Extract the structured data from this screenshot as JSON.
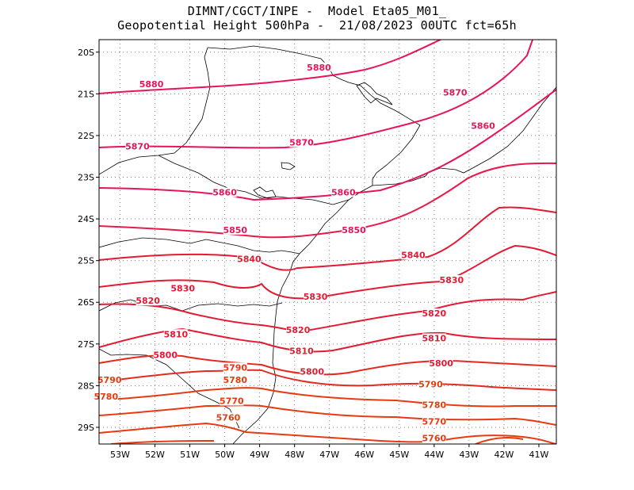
{
  "title": {
    "line1": "DIMNT/CGCT/INPE -  Model Eta05_M01_",
    "line2": "Geopotential Height 500hPa -  21/08/2023 00UTC fct=65h"
  },
  "axes": {
    "lat_ticks": [
      "20S",
      "21S",
      "22S",
      "23S",
      "24S",
      "25S",
      "26S",
      "27S",
      "28S",
      "29S"
    ],
    "lon_ticks": [
      "53W",
      "52W",
      "51W",
      "50W",
      "49W",
      "48W",
      "47W",
      "46W",
      "45W",
      "44W",
      "43W",
      "42W",
      "41W"
    ]
  },
  "chart_data": {
    "type": "map-contour",
    "field": "Geopotential Height 500hPa",
    "lat_range": [
      -29.4,
      -19.7
    ],
    "lon_range": [
      -53.6,
      -40.5
    ],
    "contour_levels": [
      5760,
      5770,
      5780,
      5790,
      5800,
      5810,
      5820,
      5830,
      5840,
      5850,
      5860,
      5870,
      5880
    ],
    "contour_labels": [
      {
        "text": "5880",
        "lon": -52.1,
        "lat": -20.8
      },
      {
        "text": "5880",
        "lon": -47.3,
        "lat": -20.4
      },
      {
        "text": "5870",
        "lon": -43.4,
        "lat": -21.0
      },
      {
        "text": "5860",
        "lon": -42.6,
        "lat": -21.8
      },
      {
        "text": "5870",
        "lon": -52.5,
        "lat": -22.3
      },
      {
        "text": "5870",
        "lon": -47.8,
        "lat": -22.2
      },
      {
        "text": "5860",
        "lon": -50.0,
        "lat": -23.4
      },
      {
        "text": "5860",
        "lon": -46.6,
        "lat": -23.4
      },
      {
        "text": "5850",
        "lon": -49.7,
        "lat": -24.3
      },
      {
        "text": "5850",
        "lon": -46.3,
        "lat": -24.3
      },
      {
        "text": "5840",
        "lon": -49.3,
        "lat": -25.0
      },
      {
        "text": "5840",
        "lon": -44.6,
        "lat": -24.9
      },
      {
        "text": "5830",
        "lon": -51.2,
        "lat": -25.7
      },
      {
        "text": "5830",
        "lon": -47.4,
        "lat": -25.9
      },
      {
        "text": "5830",
        "lon": -43.5,
        "lat": -25.5
      },
      {
        "text": "5820",
        "lon": -52.2,
        "lat": -26.0
      },
      {
        "text": "5820",
        "lon": -47.9,
        "lat": -26.7
      },
      {
        "text": "5820",
        "lon": -44.0,
        "lat": -26.3
      },
      {
        "text": "5810",
        "lon": -51.4,
        "lat": -26.8
      },
      {
        "text": "5810",
        "lon": -47.8,
        "lat": -27.2
      },
      {
        "text": "5810",
        "lon": -44.0,
        "lat": -26.9
      },
      {
        "text": "5800",
        "lon": -51.7,
        "lat": -27.3
      },
      {
        "text": "5800",
        "lon": -47.5,
        "lat": -27.7
      },
      {
        "text": "5800",
        "lon": -43.8,
        "lat": -27.5
      },
      {
        "text": "5790",
        "lon": -53.3,
        "lat": -27.9
      },
      {
        "text": "5790",
        "lon": -49.7,
        "lat": -27.6
      },
      {
        "text": "5790",
        "lon": -44.1,
        "lat": -28.0
      },
      {
        "text": "5780",
        "lon": -53.4,
        "lat": -28.3
      },
      {
        "text": "5780",
        "lon": -49.7,
        "lat": -27.9
      },
      {
        "text": "5780",
        "lon": -44.0,
        "lat": -28.5
      },
      {
        "text": "5770",
        "lon": -49.8,
        "lat": -28.4
      },
      {
        "text": "5770",
        "lon": -44.0,
        "lat": -28.9
      },
      {
        "text": "5760",
        "lon": -49.9,
        "lat": -28.8
      },
      {
        "text": "5760",
        "lon": -44.0,
        "lat": -29.3
      }
    ]
  },
  "colors": {
    "contour_high": "#e8145a",
    "contour_mid": "#e41a32",
    "contour_low": "#e83a10",
    "coast": "#000000",
    "grid": "#808080"
  }
}
